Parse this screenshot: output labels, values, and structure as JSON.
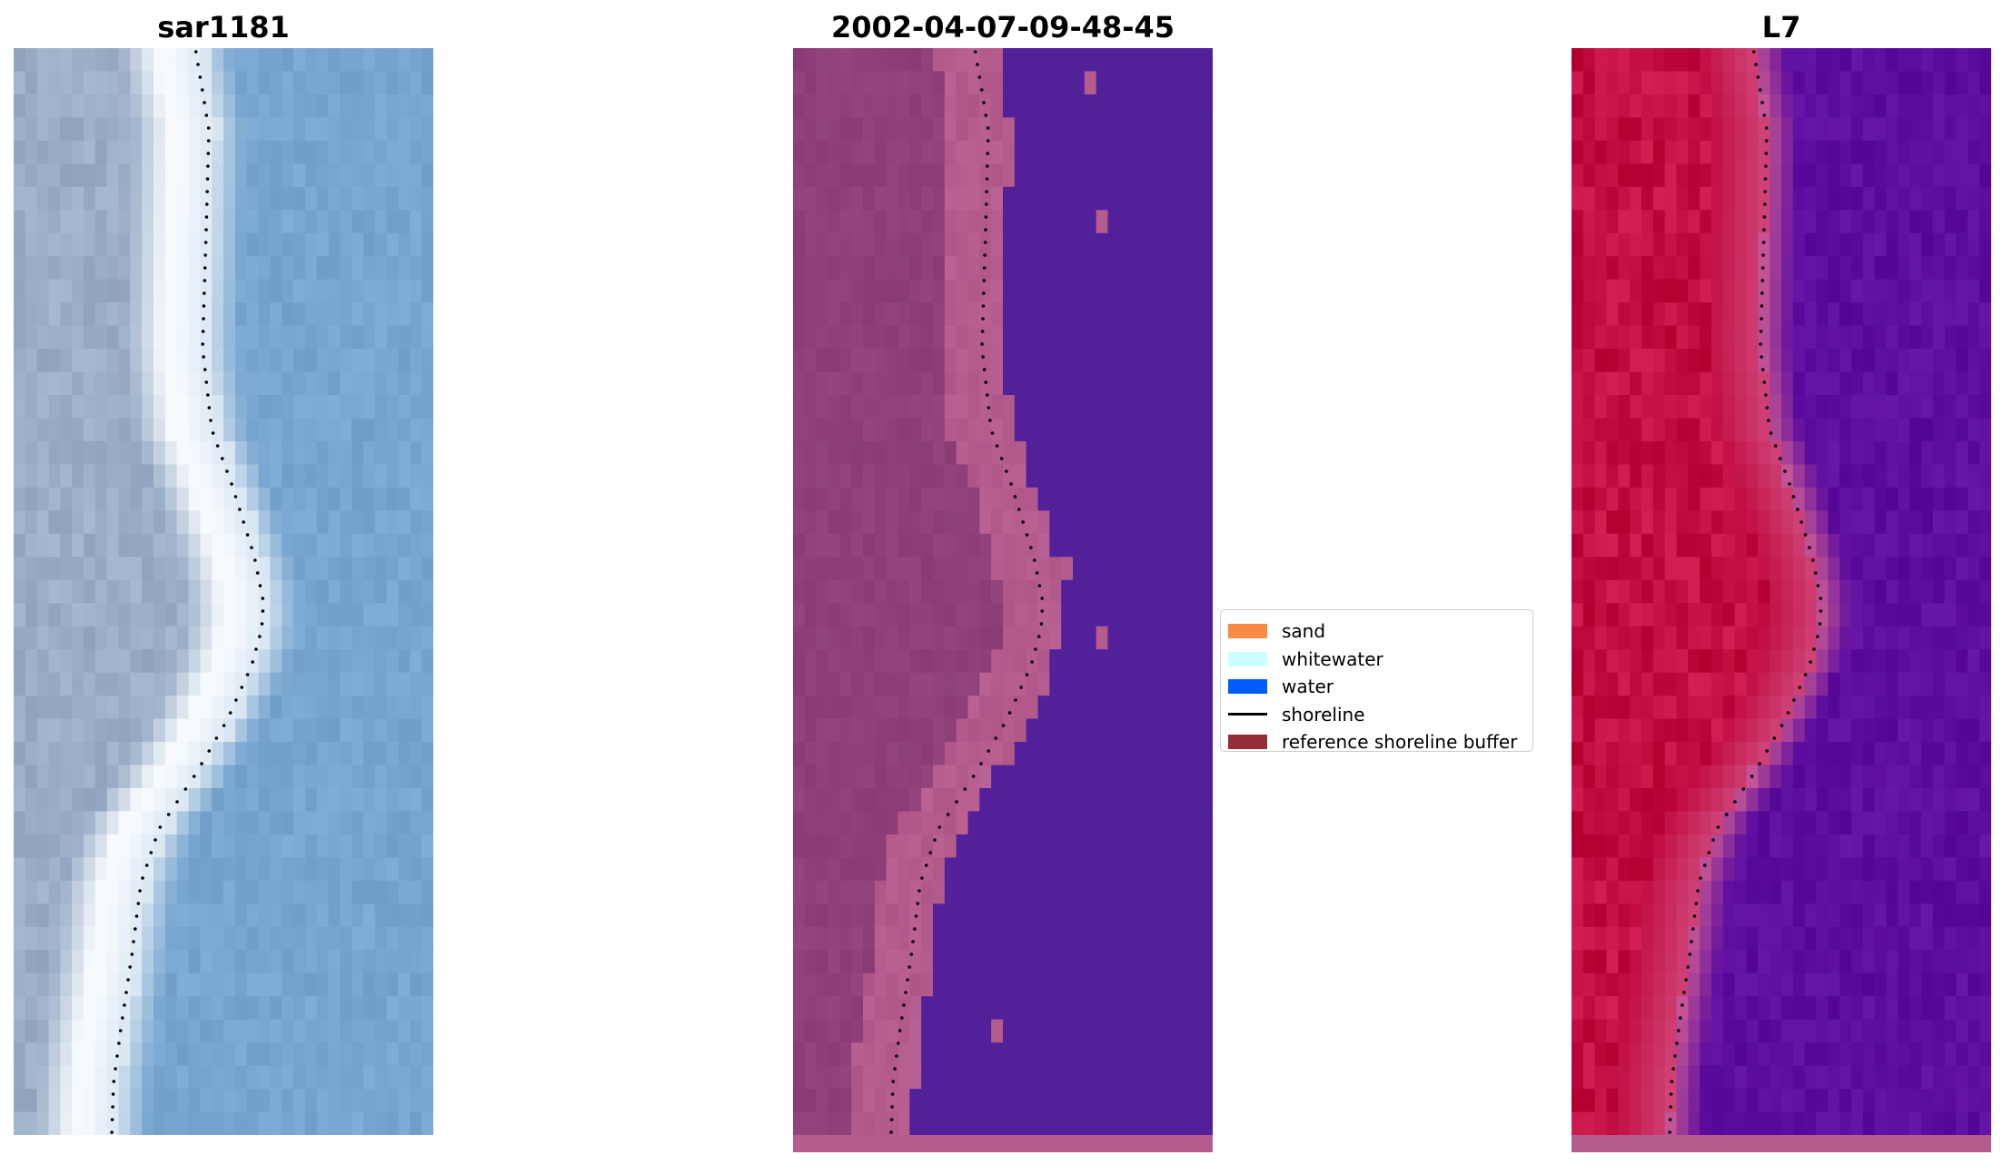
{
  "panels": [
    {
      "title": "sar1181",
      "kind": "rgb"
    },
    {
      "title": "2002-04-07-09-48-45",
      "kind": "classified"
    },
    {
      "title": "L7",
      "kind": "index"
    }
  ],
  "legend": {
    "items": [
      {
        "label": "sand",
        "color": "#f98a42"
      },
      {
        "label": "whitewater",
        "color": "#ccffff"
      },
      {
        "label": "water",
        "color": "#005cfa"
      },
      {
        "label": "shoreline",
        "color": "#000000"
      },
      {
        "label": "reference shoreline buffer",
        "color": "#962d37"
      }
    ]
  },
  "colors": {
    "sand_land": "#8f4079",
    "sand_bright": "#b55c8f",
    "water_class": "#52219a",
    "index_land": "#c20e40",
    "index_water": "#5e0e9e",
    "rgb_land": "#9aaec8",
    "rgb_water": "#78a6d0",
    "rgb_white": "#f6fafd"
  }
}
